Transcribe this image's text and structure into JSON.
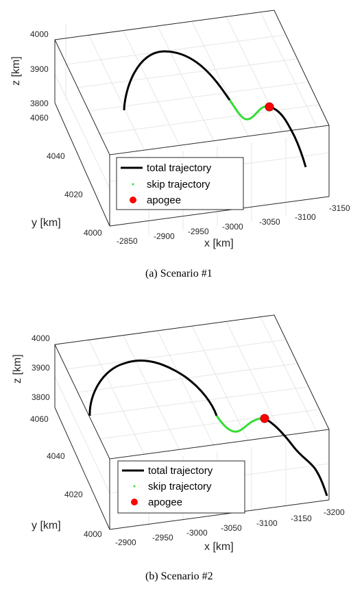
{
  "chart_data": [
    {
      "type": "line",
      "caption": "(a)  Scenario  #1",
      "xlabel": "x [km]",
      "ylabel": "y [km]",
      "zlabel": "z [km]",
      "xlim": [
        -2850,
        -3150
      ],
      "ylim": [
        4000,
        4060
      ],
      "zlim": [
        3780,
        4000
      ],
      "xticks": [
        "-2850",
        "-2900",
        "-2950",
        "-3000",
        "-3050",
        "-3100",
        "-3150"
      ],
      "yticks": [
        "4000",
        "4020",
        "4040",
        "4060"
      ],
      "zticks": [
        "3800",
        "3900",
        "4000"
      ],
      "grid": true,
      "legend": {
        "placement": "lower-left",
        "entries": [
          "total trajectory",
          "skip trajectory",
          "apogee"
        ]
      },
      "colors": {
        "total": "#000000",
        "skip": "#33dd33",
        "apogee": "#ff0000"
      }
    },
    {
      "type": "line",
      "caption": "(b)  Scenario  #2",
      "xlabel": "x [km]",
      "ylabel": "y [km]",
      "zlabel": "z [km]",
      "xlim": [
        -2900,
        -3200
      ],
      "ylim": [
        4000,
        4060
      ],
      "zlim": [
        3780,
        4000
      ],
      "xticks": [
        "-2900",
        "-2950",
        "-3000",
        "-3050",
        "-3100",
        "-3150",
        "-3200"
      ],
      "yticks": [
        "4000",
        "4020",
        "4040",
        "4060"
      ],
      "zticks": [
        "3800",
        "3900",
        "4000"
      ],
      "grid": true,
      "legend": {
        "placement": "lower-left",
        "entries": [
          "total trajectory",
          "skip trajectory",
          "apogee"
        ]
      },
      "colors": {
        "total": "#000000",
        "skip": "#33dd33",
        "apogee": "#ff0000"
      }
    }
  ]
}
